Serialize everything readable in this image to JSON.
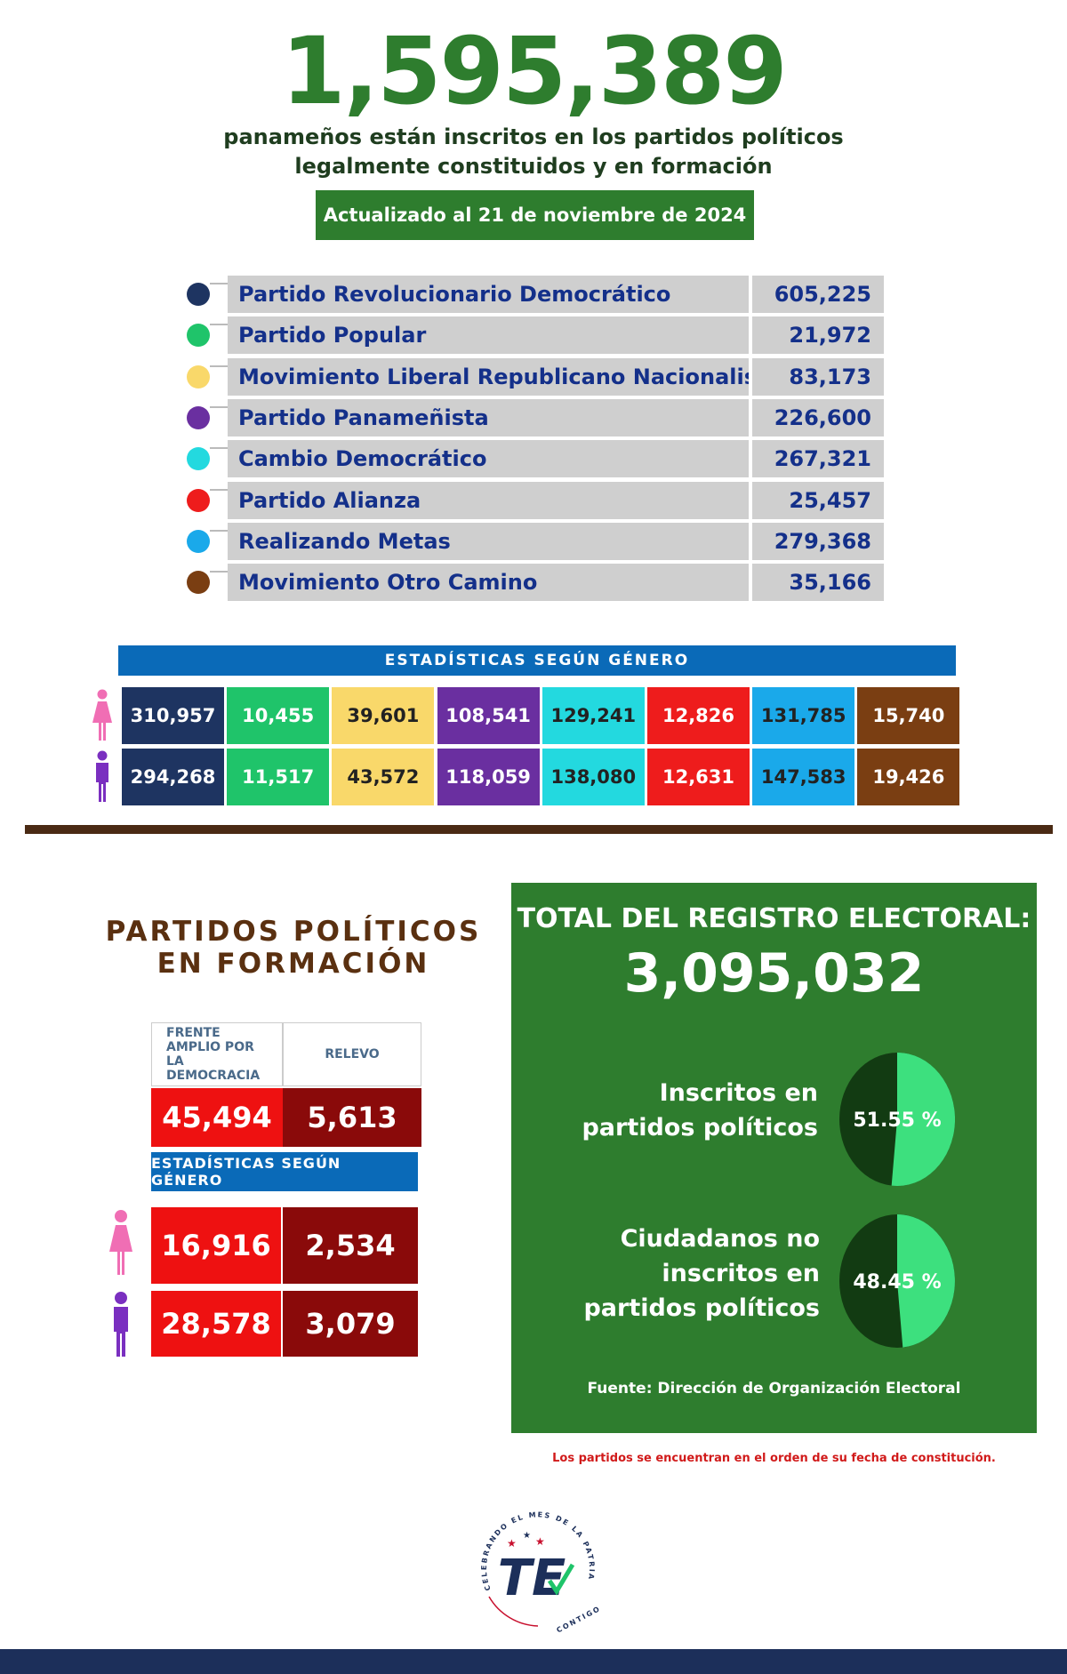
{
  "header": {
    "total": "1,595,389",
    "subtitle_line1": "panameños están inscritos en los partidos políticos",
    "subtitle_line2": "legalmente constituidos y en formación",
    "updated": "Actualizado al 21 de noviembre de 2024"
  },
  "parties": [
    {
      "name": "Partido Revolucionario Democrático",
      "value": "605,225",
      "color": "#1e3461"
    },
    {
      "name": "Partido Popular",
      "value": "21,972",
      "color": "#1fc46a"
    },
    {
      "name": "Movimiento Liberal Republicano Nacionalista",
      "value": "83,173",
      "color": "#f9d86a"
    },
    {
      "name": "Partido Panameñista",
      "value": "226,600",
      "color": "#6a2fa0"
    },
    {
      "name": "Cambio Democrático",
      "value": "267,321",
      "color": "#23d9df"
    },
    {
      "name": "Partido Alianza",
      "value": "25,457",
      "color": "#ee1c1c"
    },
    {
      "name": "Realizando Metas",
      "value": "279,368",
      "color": "#1aa9ea"
    },
    {
      "name": "Movimiento Otro Camino",
      "value": "35,166",
      "color": "#7a3e12"
    }
  ],
  "gender_stats": {
    "header": "ESTADÍSTICAS SEGÚN GÉNERO",
    "women": [
      "310,957",
      "10,455",
      "39,601",
      "108,541",
      "129,241",
      "12,826",
      "131,785",
      "15,740"
    ],
    "men": [
      "294,268",
      "11,517",
      "43,572",
      "118,059",
      "138,080",
      "12,631",
      "147,583",
      "19,426"
    ],
    "text_colors": [
      "#ffffff",
      "#ffffff",
      "#222222",
      "#ffffff",
      "#222222",
      "#ffffff",
      "#222222",
      "#ffffff"
    ]
  },
  "formation": {
    "title_line1": "PARTIDOS POLÍTICOS",
    "title_line2": "EN FORMACIÓN",
    "parties": [
      {
        "name": "FRENTE AMPLIO POR LA DEMOCRACIA",
        "total": "45,494",
        "women": "16,916",
        "men": "28,578",
        "color": "#ee1111"
      },
      {
        "name": "RELEVO",
        "total": "5,613",
        "women": "2,534",
        "men": "3,079",
        "color": "#8a0a0a"
      }
    ],
    "gender_header": "ESTADÍSTICAS SEGÚN GÉNERO"
  },
  "registry": {
    "title": "TOTAL DEL REGISTRO ELECTORAL:",
    "total": "3,095,032",
    "inscribed_label_line1": "Inscritos en",
    "inscribed_label_line2": "partidos políticos",
    "inscribed_pct_label": "51.55 %",
    "inscribed_fraction": 0.5155,
    "not_inscribed_label_line1": "Ciudadanos no",
    "not_inscribed_label_line2": "inscritos en",
    "not_inscribed_label_line3": "partidos políticos",
    "not_inscribed_pct_label": "48.45 %",
    "not_inscribed_fraction": 0.4845,
    "source": "Fuente: Dirección de Organización Electoral"
  },
  "note": "Los partidos se encuentran en el orden de su fecha de constitución.",
  "logo": {
    "ring_text": "CELEBRANDO EL MES DE LA PATRIA",
    "mark": "TE",
    "tagline": "CONTIGO"
  },
  "colors": {
    "green": "#2e7d2e",
    "blue": "#0a6ab8",
    "pink": "#f06eb4",
    "purple": "#7a2fc0",
    "pie_dark": "#123b12",
    "pie_light": "#3de07e"
  }
}
